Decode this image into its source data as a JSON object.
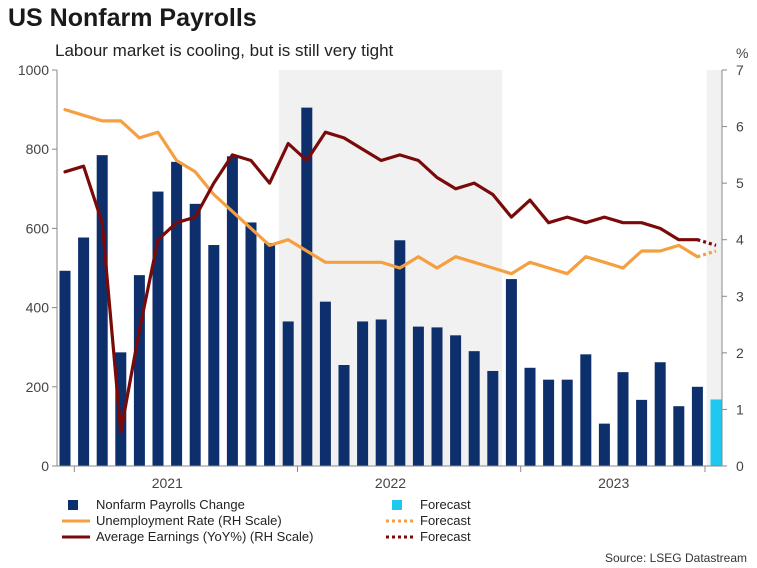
{
  "title": "US Nonfarm Payrolls",
  "subtitle": "Labour market is cooling, but is still very tight",
  "source": "Source: LSEG Datastream",
  "colors": {
    "payrolls": "#0d2f6b",
    "forecast_bar": "#1ec8f0",
    "unemployment": "#f5a040",
    "earnings": "#7a0a0a",
    "shade": "#f1f1f1",
    "axis": "#888888"
  },
  "chart_data": {
    "type": "bar+line",
    "left_axis": {
      "range": [
        0,
        1000
      ],
      "ticks": [
        "0",
        "200",
        "400",
        "600",
        "800",
        "1000"
      ]
    },
    "right_axis": {
      "label": "%",
      "range": [
        0,
        7
      ],
      "ticks": [
        "0",
        "1",
        "2",
        "3",
        "4",
        "5",
        "6",
        "7"
      ]
    },
    "x_axis": {
      "ticks": [
        "2021",
        "2022",
        "2023"
      ]
    },
    "shaded_spans": [
      {
        "label": "2022",
        "from_index": 12,
        "to_index": 23
      },
      {
        "label": "forecast",
        "from_index": 35,
        "to_index": 35
      }
    ],
    "periods": [
      "2020-12",
      "2021-01",
      "2021-02",
      "2021-03",
      "2021-04",
      "2021-05",
      "2021-06",
      "2021-07",
      "2021-08",
      "2021-09",
      "2021-10",
      "2021-11",
      "2021-12",
      "2022-01",
      "2022-02",
      "2022-03",
      "2022-04",
      "2022-05",
      "2022-06",
      "2022-07",
      "2022-08",
      "2022-09",
      "2022-10",
      "2022-11",
      "2022-12",
      "2023-01",
      "2023-02",
      "2023-03",
      "2023-04",
      "2023-05",
      "2023-06",
      "2023-07",
      "2023-08",
      "2023-09",
      "2023-10",
      "2023-11"
    ],
    "series": [
      {
        "name": "Nonfarm Payrolls Change",
        "type": "bar",
        "axis": "left",
        "values": [
          493,
          577,
          785,
          287,
          482,
          693,
          768,
          662,
          558,
          782,
          615,
          563,
          365,
          905,
          415,
          255,
          365,
          370,
          570,
          352,
          350,
          330,
          290,
          240,
          472,
          248,
          218,
          218,
          282,
          107,
          237,
          167,
          262,
          151,
          200,
          null
        ]
      },
      {
        "name": "Forecast",
        "type": "bar",
        "axis": "left",
        "index": 35,
        "value": 168
      },
      {
        "name": "Unemployment Rate (RH Scale)",
        "type": "line",
        "axis": "right",
        "values": [
          6.3,
          6.2,
          6.1,
          6.1,
          5.8,
          5.9,
          5.4,
          5.2,
          4.8,
          4.5,
          4.2,
          3.9,
          4.0,
          3.8,
          3.6,
          3.6,
          3.6,
          3.6,
          3.5,
          3.7,
          3.5,
          3.7,
          3.6,
          3.5,
          3.4,
          3.6,
          3.5,
          3.4,
          3.7,
          3.6,
          3.5,
          3.8,
          3.8,
          3.9,
          3.7,
          null
        ]
      },
      {
        "name": "Forecast",
        "type": "line",
        "axis": "right",
        "dotted": true,
        "from_index": 34,
        "values": [
          3.7,
          3.8
        ]
      },
      {
        "name": "Average Earnings (YoY%) (RH Scale)",
        "type": "line",
        "axis": "right",
        "values": [
          5.2,
          5.3,
          4.3,
          0.6,
          2.4,
          4.0,
          4.3,
          4.4,
          5.0,
          5.5,
          5.4,
          5.0,
          5.7,
          5.4,
          5.9,
          5.8,
          5.6,
          5.4,
          5.5,
          5.4,
          5.1,
          4.9,
          5.0,
          4.8,
          4.4,
          4.7,
          4.3,
          4.4,
          4.3,
          4.4,
          4.3,
          4.3,
          4.2,
          4.0,
          4.0,
          null
        ]
      },
      {
        "name": "Forecast",
        "type": "line",
        "axis": "right",
        "dotted": true,
        "from_index": 34,
        "values": [
          4.0,
          3.9
        ]
      }
    ],
    "legend": {
      "placement": "bottom",
      "entries": [
        {
          "label": "Nonfarm Payrolls Change",
          "key": "payrolls",
          "shape": "square"
        },
        {
          "label": "Forecast",
          "key": "forecast_bar",
          "shape": "square"
        },
        {
          "label": "Unemployment Rate (RH Scale)",
          "key": "unemployment",
          "shape": "line"
        },
        {
          "label": "Forecast",
          "key": "unemployment",
          "shape": "dotted"
        },
        {
          "label": "Average Earnings (YoY%) (RH Scale)",
          "key": "earnings",
          "shape": "line"
        },
        {
          "label": "Forecast",
          "key": "earnings",
          "shape": "dotted"
        }
      ]
    }
  }
}
